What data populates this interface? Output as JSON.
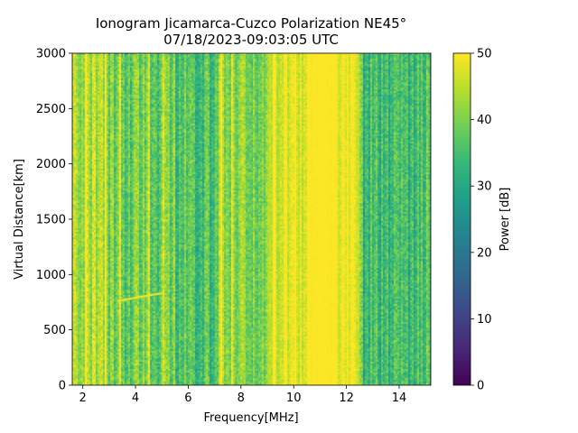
{
  "chart_data": {
    "type": "heatmap",
    "title": "Ionogram Jicamarca-Cuzco Polarization NE45°",
    "subtitle": "07/18/2023-09:03:05 UTC",
    "xlabel": "Frequency[MHz]",
    "ylabel": "Virtual Distance[km]",
    "xlim": [
      1.6,
      15.2
    ],
    "ylim": [
      0,
      3000
    ],
    "x_ticks": [
      2,
      4,
      6,
      8,
      10,
      12,
      14
    ],
    "x_tick_labels": [
      "2",
      "4",
      "6",
      "8",
      "10",
      "12",
      "14"
    ],
    "y_ticks": [
      0,
      500,
      1000,
      1500,
      2000,
      2500,
      3000
    ],
    "y_tick_labels": [
      "0",
      "500",
      "1000",
      "1500",
      "2000",
      "2500",
      "3000"
    ],
    "colorbar": {
      "label": "Power [dB]",
      "colormap": "viridis",
      "vmin": 0,
      "vmax": 50,
      "ticks": [
        0,
        10,
        20,
        30,
        40,
        50
      ],
      "tick_labels": [
        "0",
        "10",
        "20",
        "30",
        "40",
        "50"
      ]
    },
    "frequency_bands": [
      {
        "range_mhz": [
          1.6,
          3.0
        ],
        "level_db": 44,
        "variability_db": 8
      },
      {
        "range_mhz": [
          3.0,
          5.5
        ],
        "level_db": 38,
        "variability_db": 9
      },
      {
        "range_mhz": [
          5.5,
          7.0
        ],
        "level_db": 36,
        "variability_db": 9
      },
      {
        "range_mhz": [
          7.0,
          9.0
        ],
        "level_db": 41,
        "variability_db": 8
      },
      {
        "range_mhz": [
          9.0,
          10.5
        ],
        "level_db": 47,
        "variability_db": 5
      },
      {
        "range_mhz": [
          10.5,
          11.7
        ],
        "level_db": 50,
        "variability_db": 1
      },
      {
        "range_mhz": [
          11.7,
          12.5
        ],
        "level_db": 48,
        "variability_db": 4
      },
      {
        "range_mhz": [
          12.5,
          15.2
        ],
        "level_db": 34,
        "variability_db": 9
      }
    ],
    "trace": {
      "x": [
        3.3,
        4.0,
        4.6,
        5.0
      ],
      "y": [
        760,
        790,
        815,
        830
      ],
      "level_db": 50
    },
    "colors": {
      "viridis": [
        "#440154",
        "#482878",
        "#3e4989",
        "#31688e",
        "#26828e",
        "#1f9e89",
        "#35b779",
        "#6ece58",
        "#b5de2b",
        "#fde725"
      ]
    }
  }
}
